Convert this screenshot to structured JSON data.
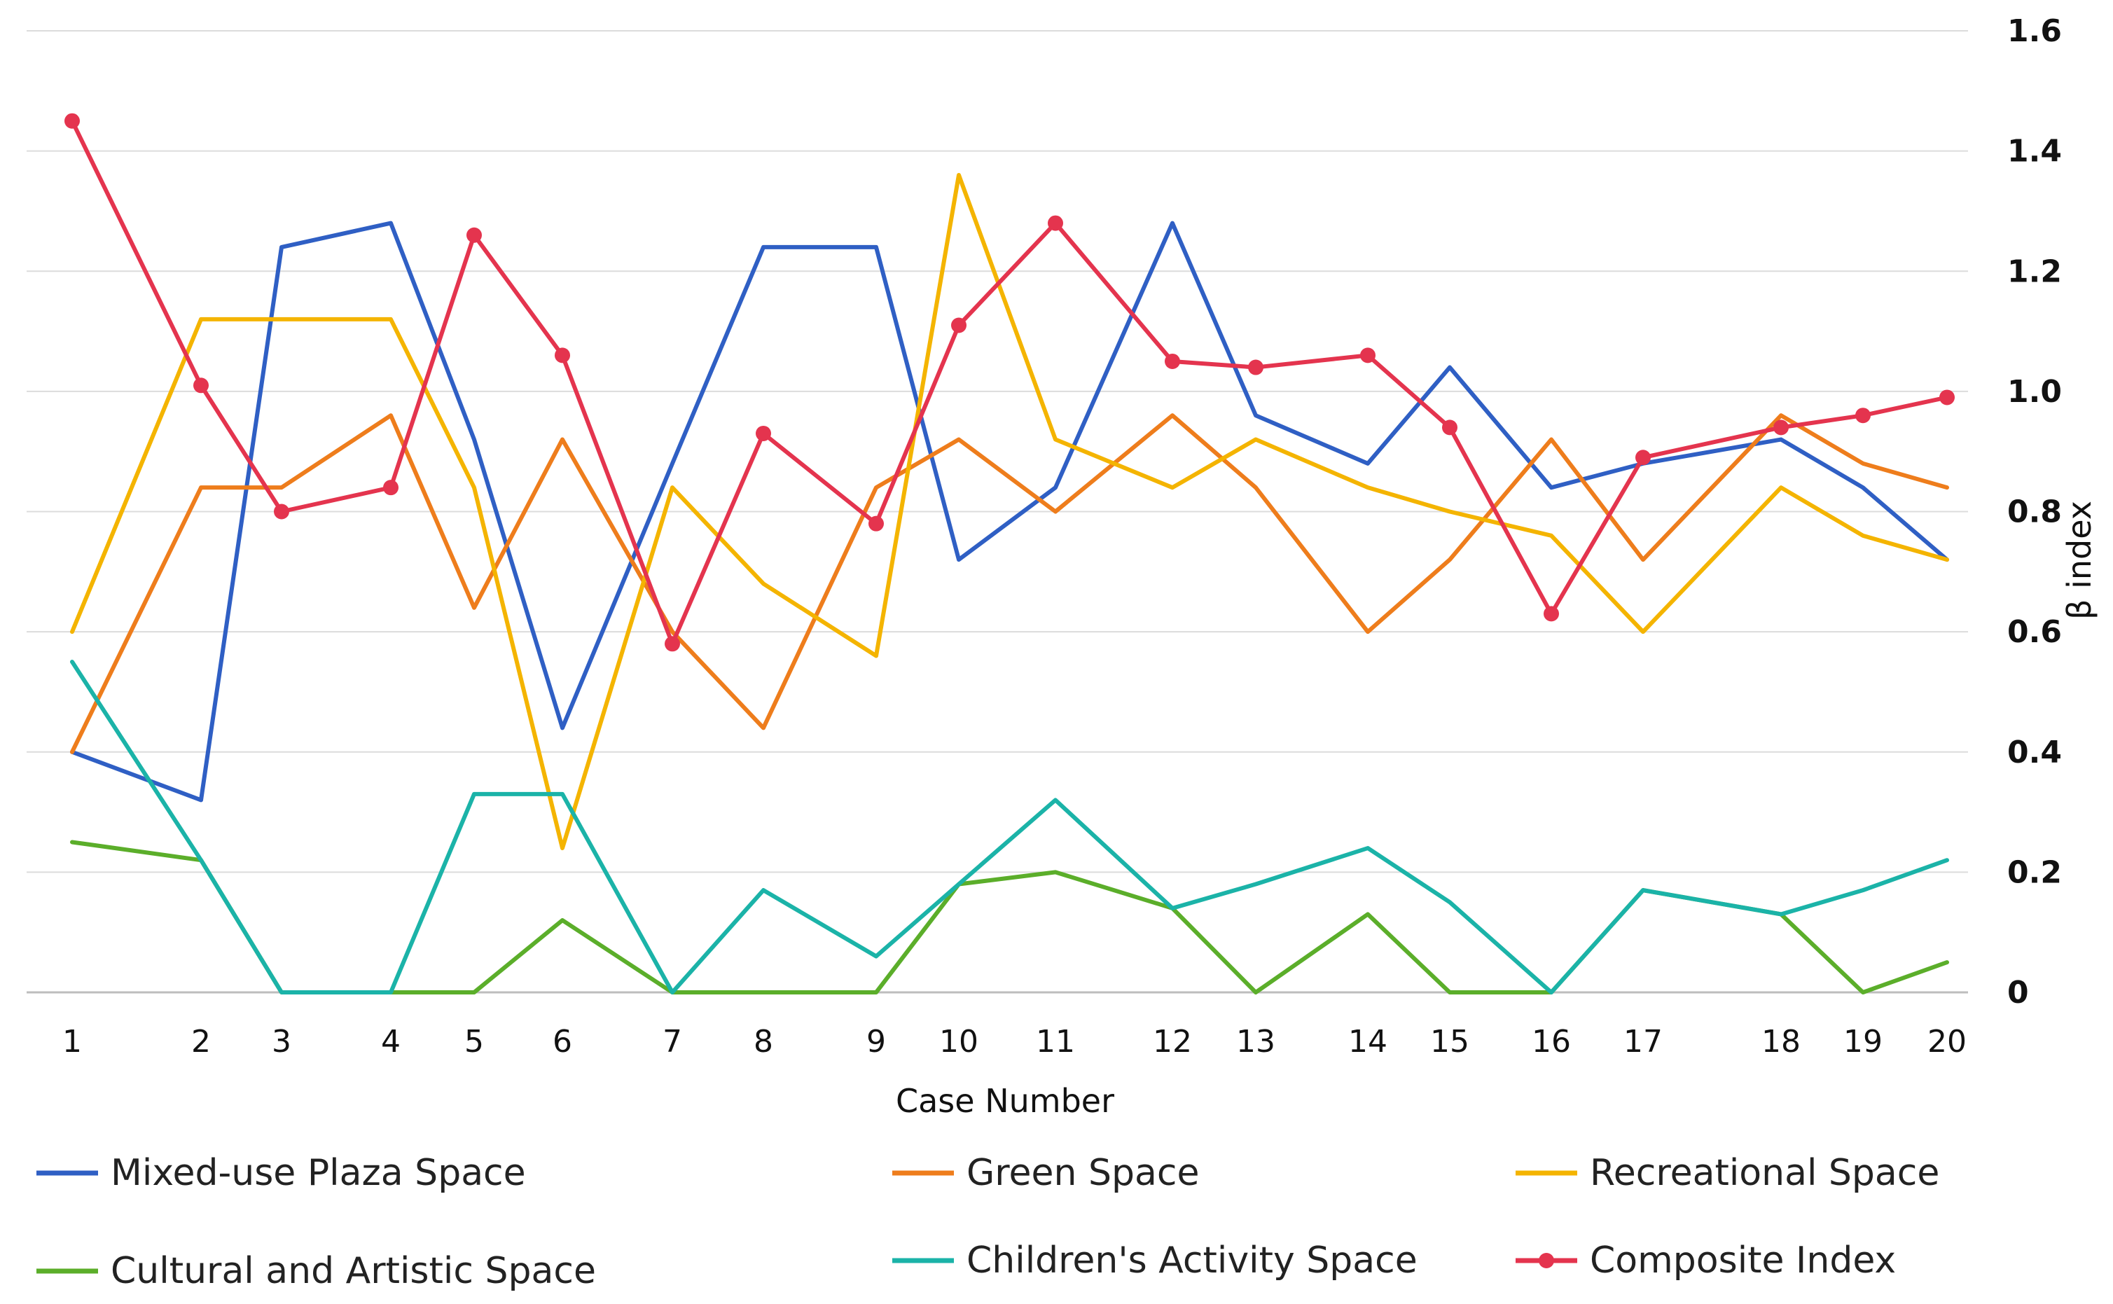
{
  "chart_data": {
    "type": "line",
    "title": "",
    "xlabel": "Case Number",
    "ylabel": "β index",
    "ylim": [
      0,
      1.6
    ],
    "yticks": [
      "0",
      "0.2",
      "0.4",
      "0.6",
      "0.8",
      "1.0",
      "1.2",
      "1.4",
      "1.6"
    ],
    "grid": "horizontal",
    "legend_position": "bottom",
    "categories": [
      "1",
      "2",
      "3",
      "4",
      "5",
      "6",
      "7",
      "8",
      "9",
      "10",
      "11",
      "12",
      "13",
      "14",
      "15",
      "16",
      "17",
      "18",
      "19",
      "20"
    ],
    "series": [
      {
        "name": "Mixed-use Plaza Space",
        "color": "#2F5FC4",
        "markers": false,
        "values": [
          0.4,
          0.32,
          1.24,
          1.28,
          0.92,
          0.44,
          0.88,
          1.24,
          1.24,
          0.72,
          0.84,
          1.28,
          0.96,
          0.88,
          1.04,
          0.84,
          0.88,
          0.92,
          0.84,
          0.72
        ]
      },
      {
        "name": "Green Space",
        "color": "#EE7D1C",
        "markers": false,
        "values": [
          0.4,
          0.84,
          0.84,
          0.96,
          0.64,
          0.92,
          0.6,
          0.44,
          0.84,
          0.92,
          0.8,
          0.96,
          0.84,
          0.6,
          0.72,
          0.92,
          0.72,
          0.96,
          0.88,
          0.84
        ]
      },
      {
        "name": "Recreational Space",
        "color": "#F4B400",
        "markers": false,
        "values": [
          0.6,
          1.12,
          1.12,
          1.12,
          0.84,
          0.24,
          0.84,
          0.68,
          0.56,
          1.36,
          0.92,
          0.84,
          0.92,
          0.84,
          0.8,
          0.76,
          0.6,
          0.84,
          0.76,
          0.72
        ]
      },
      {
        "name": "Cultural and Artistic Space",
        "color": "#5BAE2A",
        "markers": false,
        "values": [
          0.25,
          0.22,
          0.0,
          0.0,
          0.0,
          0.12,
          0.0,
          0.0,
          0.0,
          0.18,
          0.2,
          0.14,
          0.0,
          0.13,
          0.0,
          0.0,
          0.17,
          0.13,
          0.0,
          0.05
        ]
      },
      {
        "name": "Children's Activity Space",
        "color": "#1BB3A8",
        "markers": false,
        "values": [
          0.55,
          0.22,
          0.0,
          0.0,
          0.33,
          0.33,
          0.0,
          0.17,
          0.06,
          0.18,
          0.32,
          0.14,
          0.18,
          0.24,
          0.15,
          0.0,
          0.17,
          0.13,
          0.17,
          0.22
        ]
      },
      {
        "name": "Composite Index",
        "color": "#E4344E",
        "markers": true,
        "values": [
          1.45,
          1.01,
          0.8,
          0.84,
          1.26,
          1.06,
          0.58,
          0.93,
          0.78,
          1.11,
          1.28,
          1.05,
          1.04,
          1.06,
          0.94,
          0.63,
          0.89,
          0.94,
          0.96,
          0.99
        ]
      }
    ]
  }
}
